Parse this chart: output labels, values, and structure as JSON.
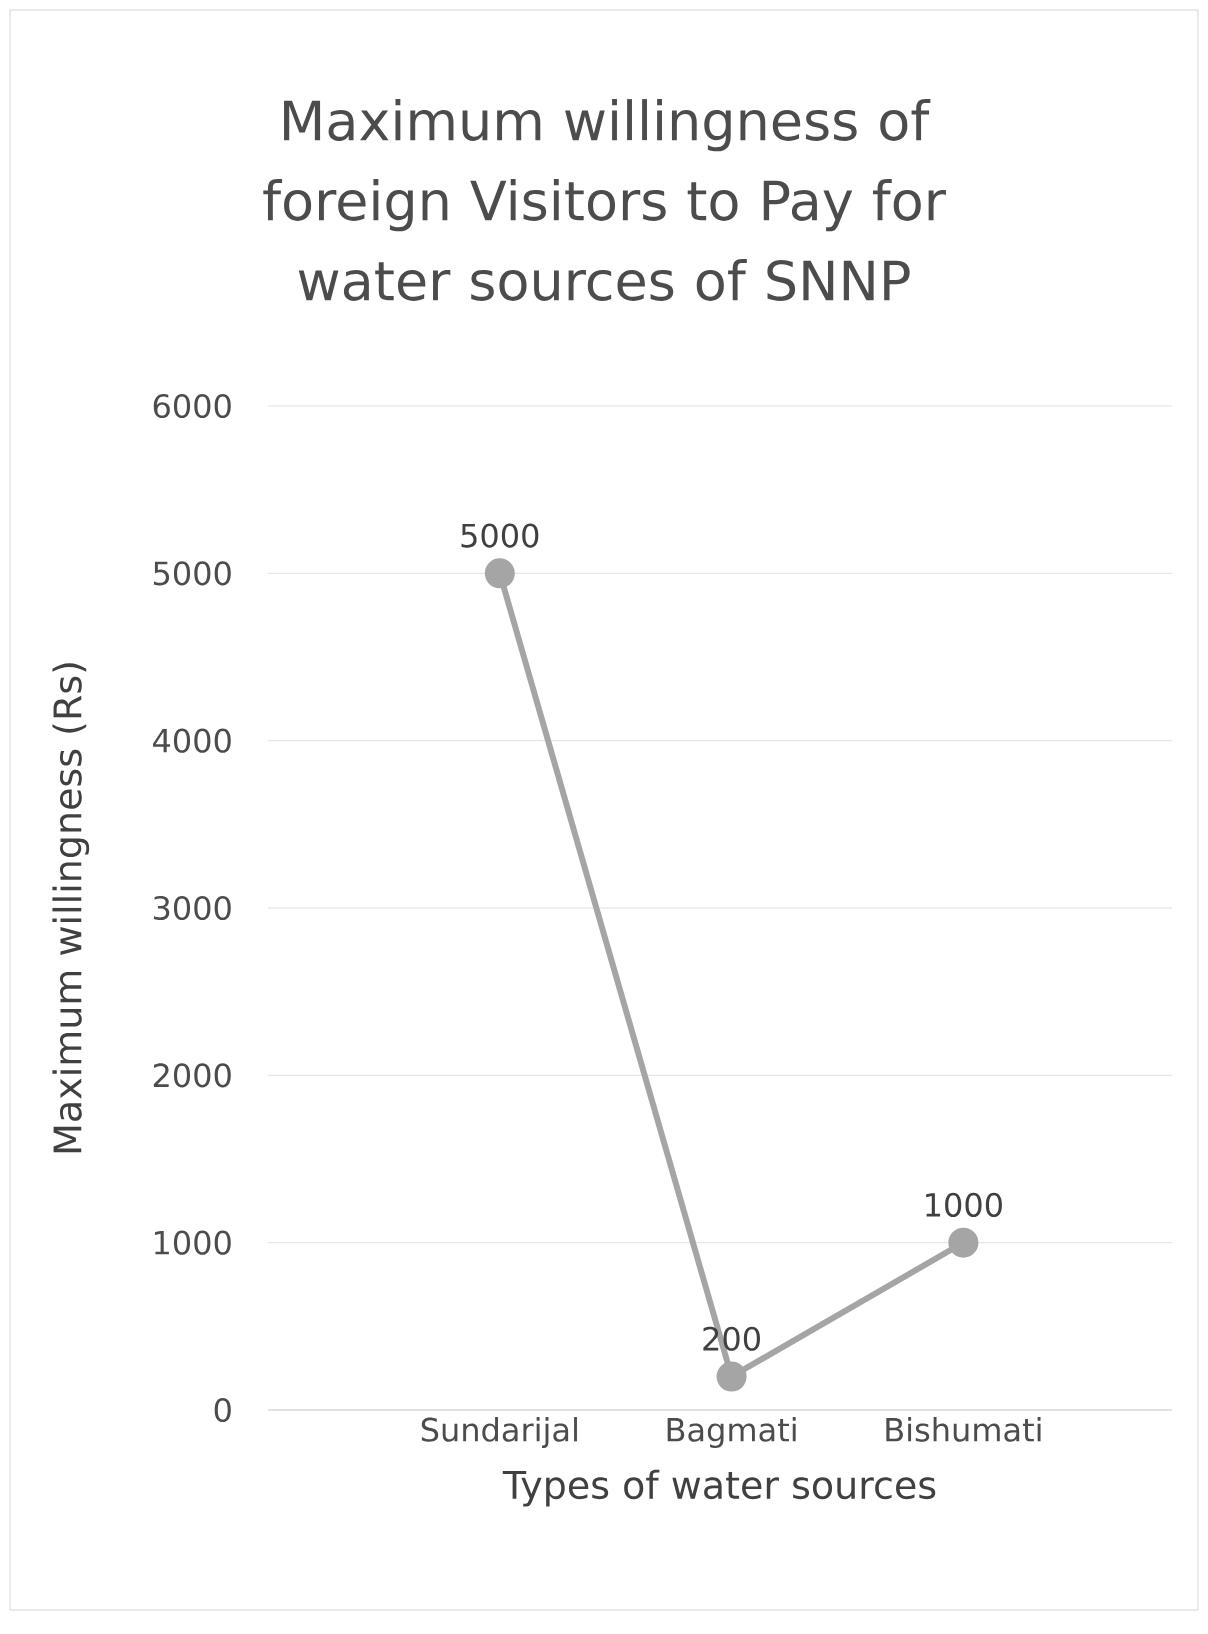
{
  "chart_data": {
    "type": "line",
    "title": "Maximum willingness of foreign Visitors to Pay for water sources of SNNP",
    "xlabel": "Types of water sources",
    "ylabel": "Maximum willingness (Rs)",
    "categories": [
      "Sundarijal",
      "Bagmati",
      "Bishumati"
    ],
    "values": [
      5000,
      200,
      1000
    ],
    "color": "#a5a5a5",
    "marker": "circle",
    "ylim": [
      0,
      6000
    ],
    "yticks": [
      0,
      1000,
      2000,
      3000,
      4000,
      5000,
      6000
    ],
    "grid": "y",
    "data_labels": true
  }
}
